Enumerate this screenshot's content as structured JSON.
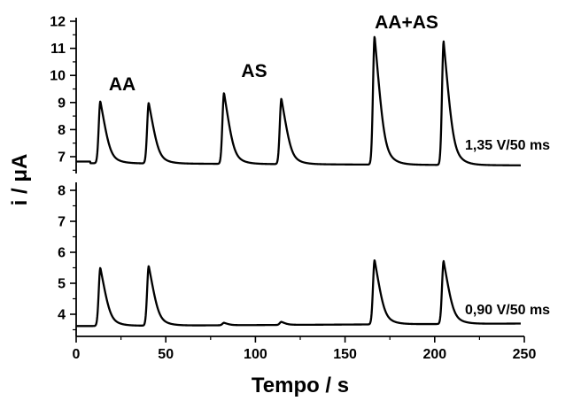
{
  "chart_data": {
    "type": "line",
    "xlabel": "Tempo / s",
    "ylabel": "i / μA",
    "xlim": [
      0,
      250
    ],
    "x_ticks": [
      "0",
      "50",
      "100",
      "150",
      "200",
      "250"
    ],
    "panels": [
      {
        "condition": "1,35 V/50 ms",
        "ylim": [
          6.5,
          12
        ],
        "y_ticks": [
          "7",
          "8",
          "9",
          "10",
          "11",
          "12"
        ],
        "baseline": 6.76,
        "start_value": 6.82,
        "end_value": 6.68,
        "peaks": [
          {
            "x": 13.5,
            "y": 9.05,
            "label": "AA"
          },
          {
            "x": 40.5,
            "y": 9.0
          },
          {
            "x": 82.5,
            "y": 9.38,
            "label": "AS"
          },
          {
            "x": 114.5,
            "y": 9.18
          },
          {
            "x": 166.5,
            "y": 11.5,
            "label": "AA+AS"
          },
          {
            "x": 205.0,
            "y": 11.32
          }
        ]
      },
      {
        "condition": "0,90 V/50 ms",
        "ylim": [
          3.5,
          8
        ],
        "y_ticks": [
          "4",
          "5",
          "6",
          "7",
          "8"
        ],
        "baseline": 3.62,
        "start_value": 3.62,
        "end_value": 3.7,
        "peaks": [
          {
            "x": 13.5,
            "y": 5.5
          },
          {
            "x": 40.5,
            "y": 5.55
          },
          {
            "x": 82.5,
            "y": 3.7
          },
          {
            "x": 114.5,
            "y": 3.72
          },
          {
            "x": 166.5,
            "y": 5.7
          },
          {
            "x": 205.0,
            "y": 5.65
          }
        ]
      }
    ]
  }
}
